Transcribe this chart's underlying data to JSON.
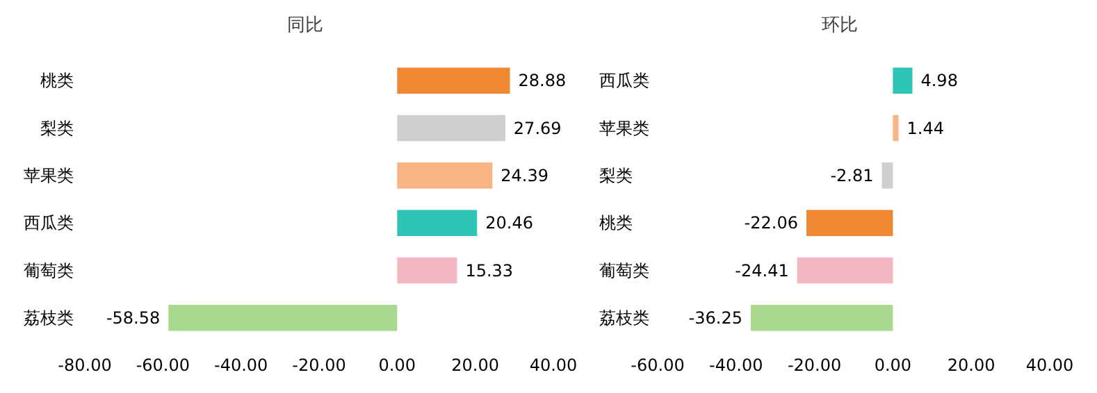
{
  "chart_data": [
    {
      "type": "bar",
      "orientation": "horizontal",
      "title": "同比",
      "categories": [
        "桃类",
        "梨类",
        "苹果类",
        "西瓜类",
        "葡萄类",
        "荔枝类"
      ],
      "values": [
        28.88,
        27.69,
        24.39,
        20.46,
        15.33,
        -58.58
      ],
      "colors": [
        "#f08833",
        "#d0cece",
        "#f8b483",
        "#2ec4b6",
        "#f4b6c2",
        "#a9d98f"
      ],
      "xlim": [
        -80,
        40
      ],
      "xticks": [
        {
          "value": -80,
          "label": "-80.00"
        },
        {
          "value": -60,
          "label": "-60.00"
        },
        {
          "value": -40,
          "label": "-40.00"
        },
        {
          "value": -20,
          "label": "-20.00"
        },
        {
          "value": 0,
          "label": "0.00"
        },
        {
          "value": 20,
          "label": "20.00"
        },
        {
          "value": 40,
          "label": "40.00"
        }
      ],
      "data_labels": true
    },
    {
      "type": "bar",
      "orientation": "horizontal",
      "title": "环比",
      "categories": [
        "西瓜类",
        "苹果类",
        "梨类",
        "桃类",
        "葡萄类",
        "荔枝类"
      ],
      "values": [
        4.98,
        1.44,
        -2.81,
        -22.06,
        -24.41,
        -36.25
      ],
      "colors": [
        "#2ec4b6",
        "#f8b483",
        "#d0cece",
        "#f08833",
        "#f4b6c2",
        "#a9d98f"
      ],
      "xlim": [
        -60,
        40
      ],
      "xticks": [
        {
          "value": -60,
          "label": "-60.00"
        },
        {
          "value": -40,
          "label": "-40.00"
        },
        {
          "value": -20,
          "label": "-20.00"
        },
        {
          "value": 0,
          "label": "0.00"
        },
        {
          "value": 20,
          "label": "20.00"
        },
        {
          "value": 40,
          "label": "40.00"
        }
      ],
      "data_labels": true
    }
  ]
}
